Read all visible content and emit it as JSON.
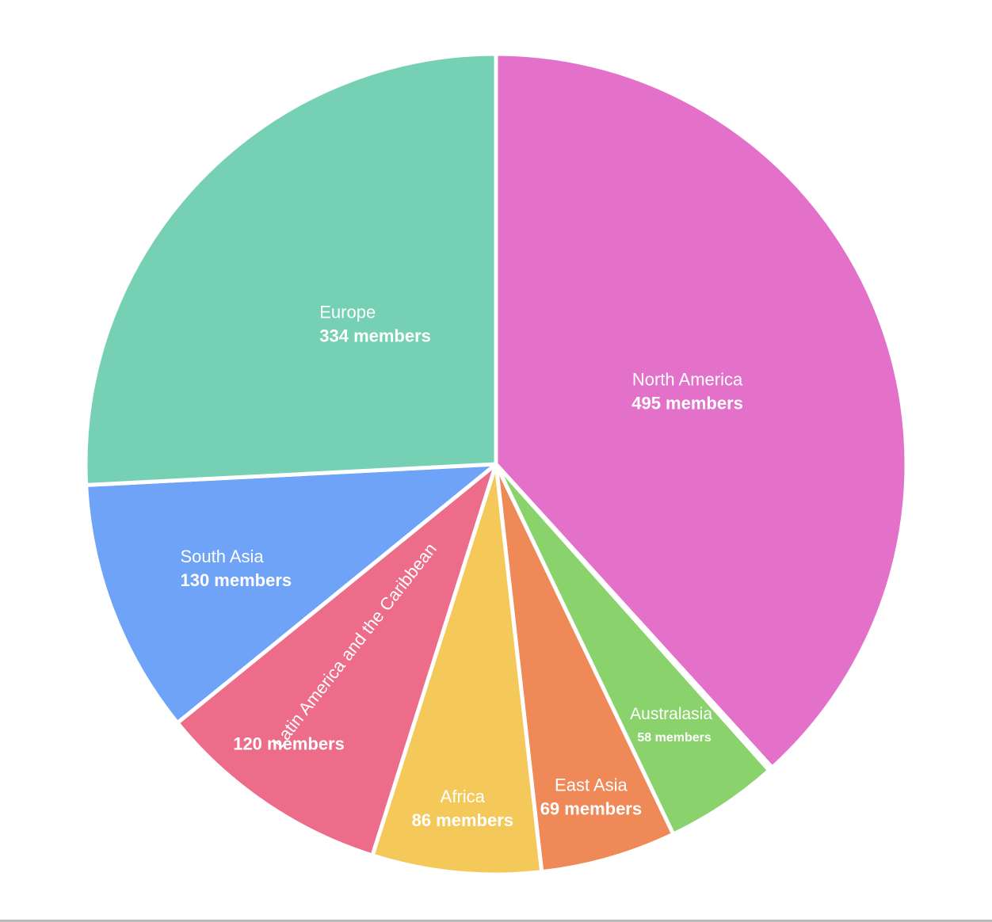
{
  "chart_data": {
    "type": "pie",
    "title": "",
    "unit": "members",
    "slices": [
      {
        "label": "North America",
        "value": 495,
        "value_text": "495 members",
        "color": "#E371CA"
      },
      {
        "label": "",
        "value": 2,
        "value_text": "",
        "color": "#6B8FD6"
      },
      {
        "label": "Australasia",
        "value": 58,
        "value_text": "58 members",
        "color": "#8AD36C"
      },
      {
        "label": "East Asia",
        "value": 69,
        "value_text": "69 members",
        "color": "#EF8A58"
      },
      {
        "label": "Africa",
        "value": 86,
        "value_text": "86 members",
        "color": "#F5C85A"
      },
      {
        "label": "Latin America and the Caribbean",
        "value": 120,
        "value_text": "120 members",
        "color": "#EC6C8A"
      },
      {
        "label": "South Asia",
        "value": 130,
        "value_text": "130 members",
        "color": "#6EA3F7"
      },
      {
        "label": "Europe",
        "value": 334,
        "value_text": "334 members",
        "color": "#75D0B4"
      }
    ]
  }
}
